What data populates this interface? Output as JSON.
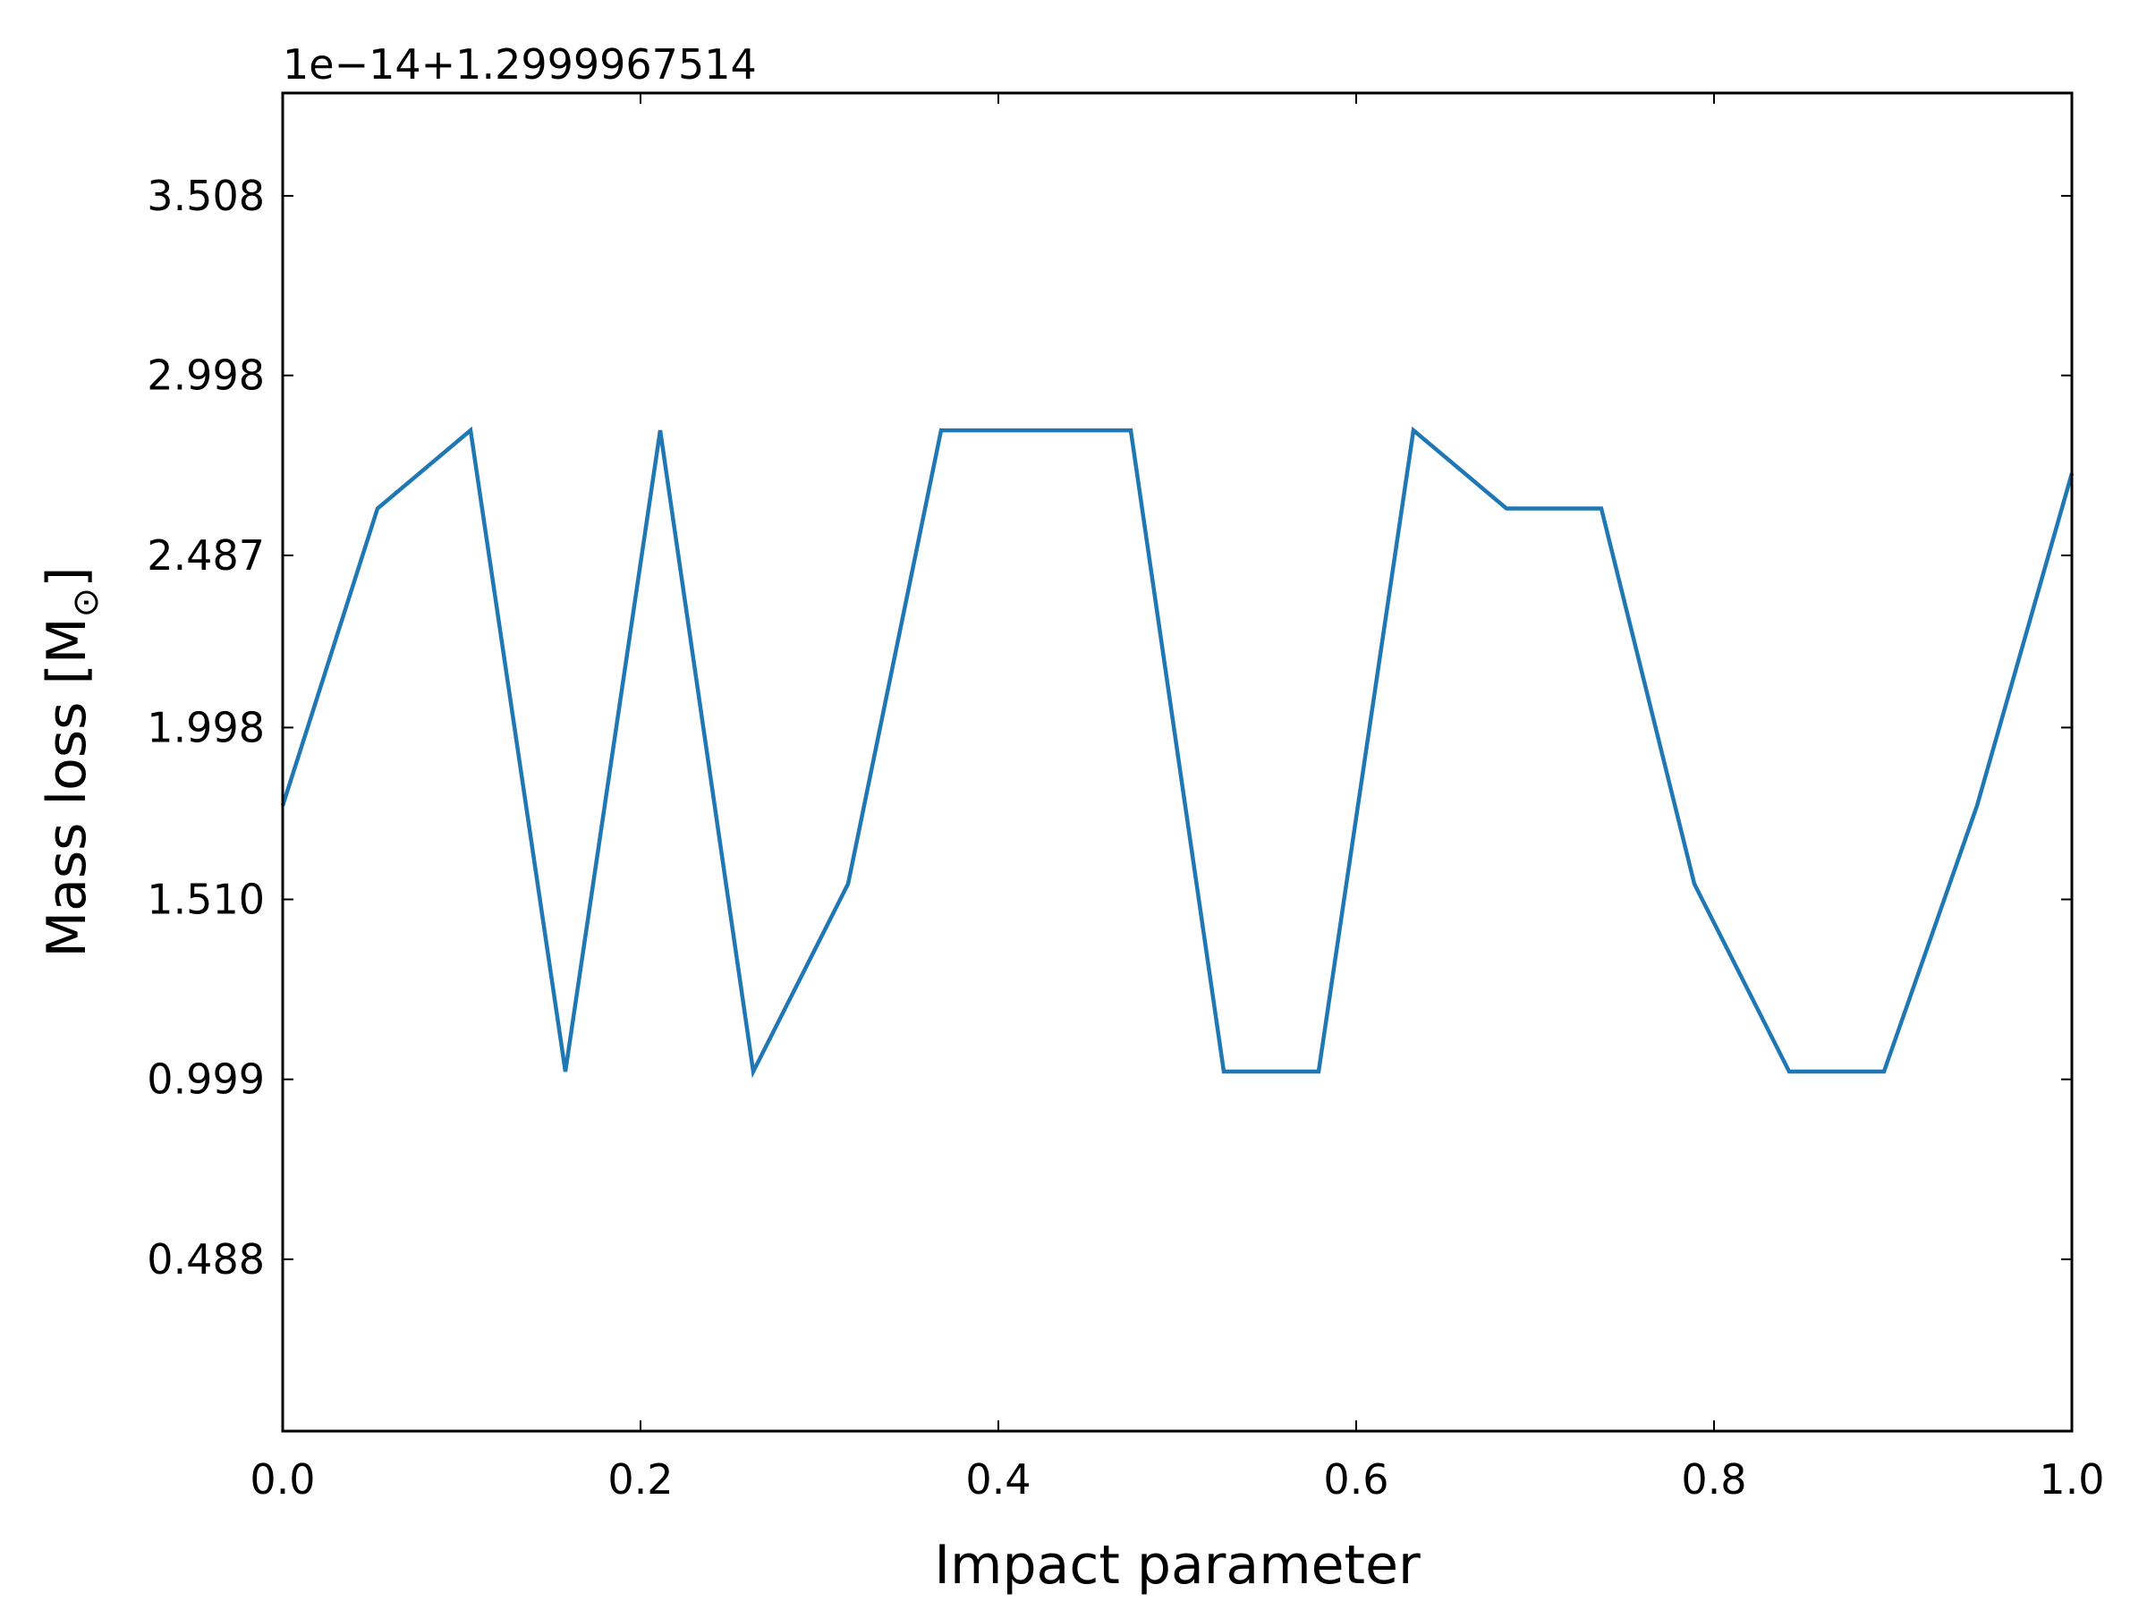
{
  "chart_data": {
    "type": "line",
    "title": "",
    "xlabel": "Impact parameter",
    "ylabel_main": "Mass loss [M",
    "ylabel_sub": "⊙",
    "ylabel_close": "]",
    "offset_text": "1e−14+1.2999967514",
    "xlim": [
      0.0,
      1.0
    ],
    "ylim": [
      0.0,
      3.8
    ],
    "x_ticks": [
      {
        "value": 0.0,
        "label": "0.0"
      },
      {
        "value": 0.2,
        "label": "0.2"
      },
      {
        "value": 0.4,
        "label": "0.4"
      },
      {
        "value": 0.6,
        "label": "0.6"
      },
      {
        "value": 0.8,
        "label": "0.8"
      },
      {
        "value": 1.0,
        "label": "1.0"
      }
    ],
    "y_ticks": [
      {
        "value": 0.488,
        "label": "0.488"
      },
      {
        "value": 0.999,
        "label": "0.999"
      },
      {
        "value": 1.51,
        "label": "1.510"
      },
      {
        "value": 1.998,
        "label": "1.998"
      },
      {
        "value": 2.487,
        "label": "2.487"
      },
      {
        "value": 2.998,
        "label": "2.998"
      },
      {
        "value": 3.508,
        "label": "3.508"
      }
    ],
    "grid": false,
    "legend": "none",
    "series": [
      {
        "color": "#1f77b4",
        "points": [
          {
            "x": 0.0,
            "y": 1.776
          },
          {
            "x": 0.053,
            "y": 2.62
          },
          {
            "x": 0.105,
            "y": 2.842
          },
          {
            "x": 0.158,
            "y": 1.021
          },
          {
            "x": 0.211,
            "y": 2.842
          },
          {
            "x": 0.263,
            "y": 1.021
          },
          {
            "x": 0.316,
            "y": 1.554
          },
          {
            "x": 0.368,
            "y": 2.842
          },
          {
            "x": 0.421,
            "y": 2.842
          },
          {
            "x": 0.474,
            "y": 2.842
          },
          {
            "x": 0.526,
            "y": 1.021
          },
          {
            "x": 0.579,
            "y": 1.021
          },
          {
            "x": 0.632,
            "y": 2.842
          },
          {
            "x": 0.684,
            "y": 2.62
          },
          {
            "x": 0.737,
            "y": 2.62
          },
          {
            "x": 0.789,
            "y": 1.554
          },
          {
            "x": 0.842,
            "y": 1.021
          },
          {
            "x": 0.895,
            "y": 1.021
          },
          {
            "x": 0.947,
            "y": 1.776
          },
          {
            "x": 1.0,
            "y": 2.72
          }
        ]
      }
    ]
  }
}
